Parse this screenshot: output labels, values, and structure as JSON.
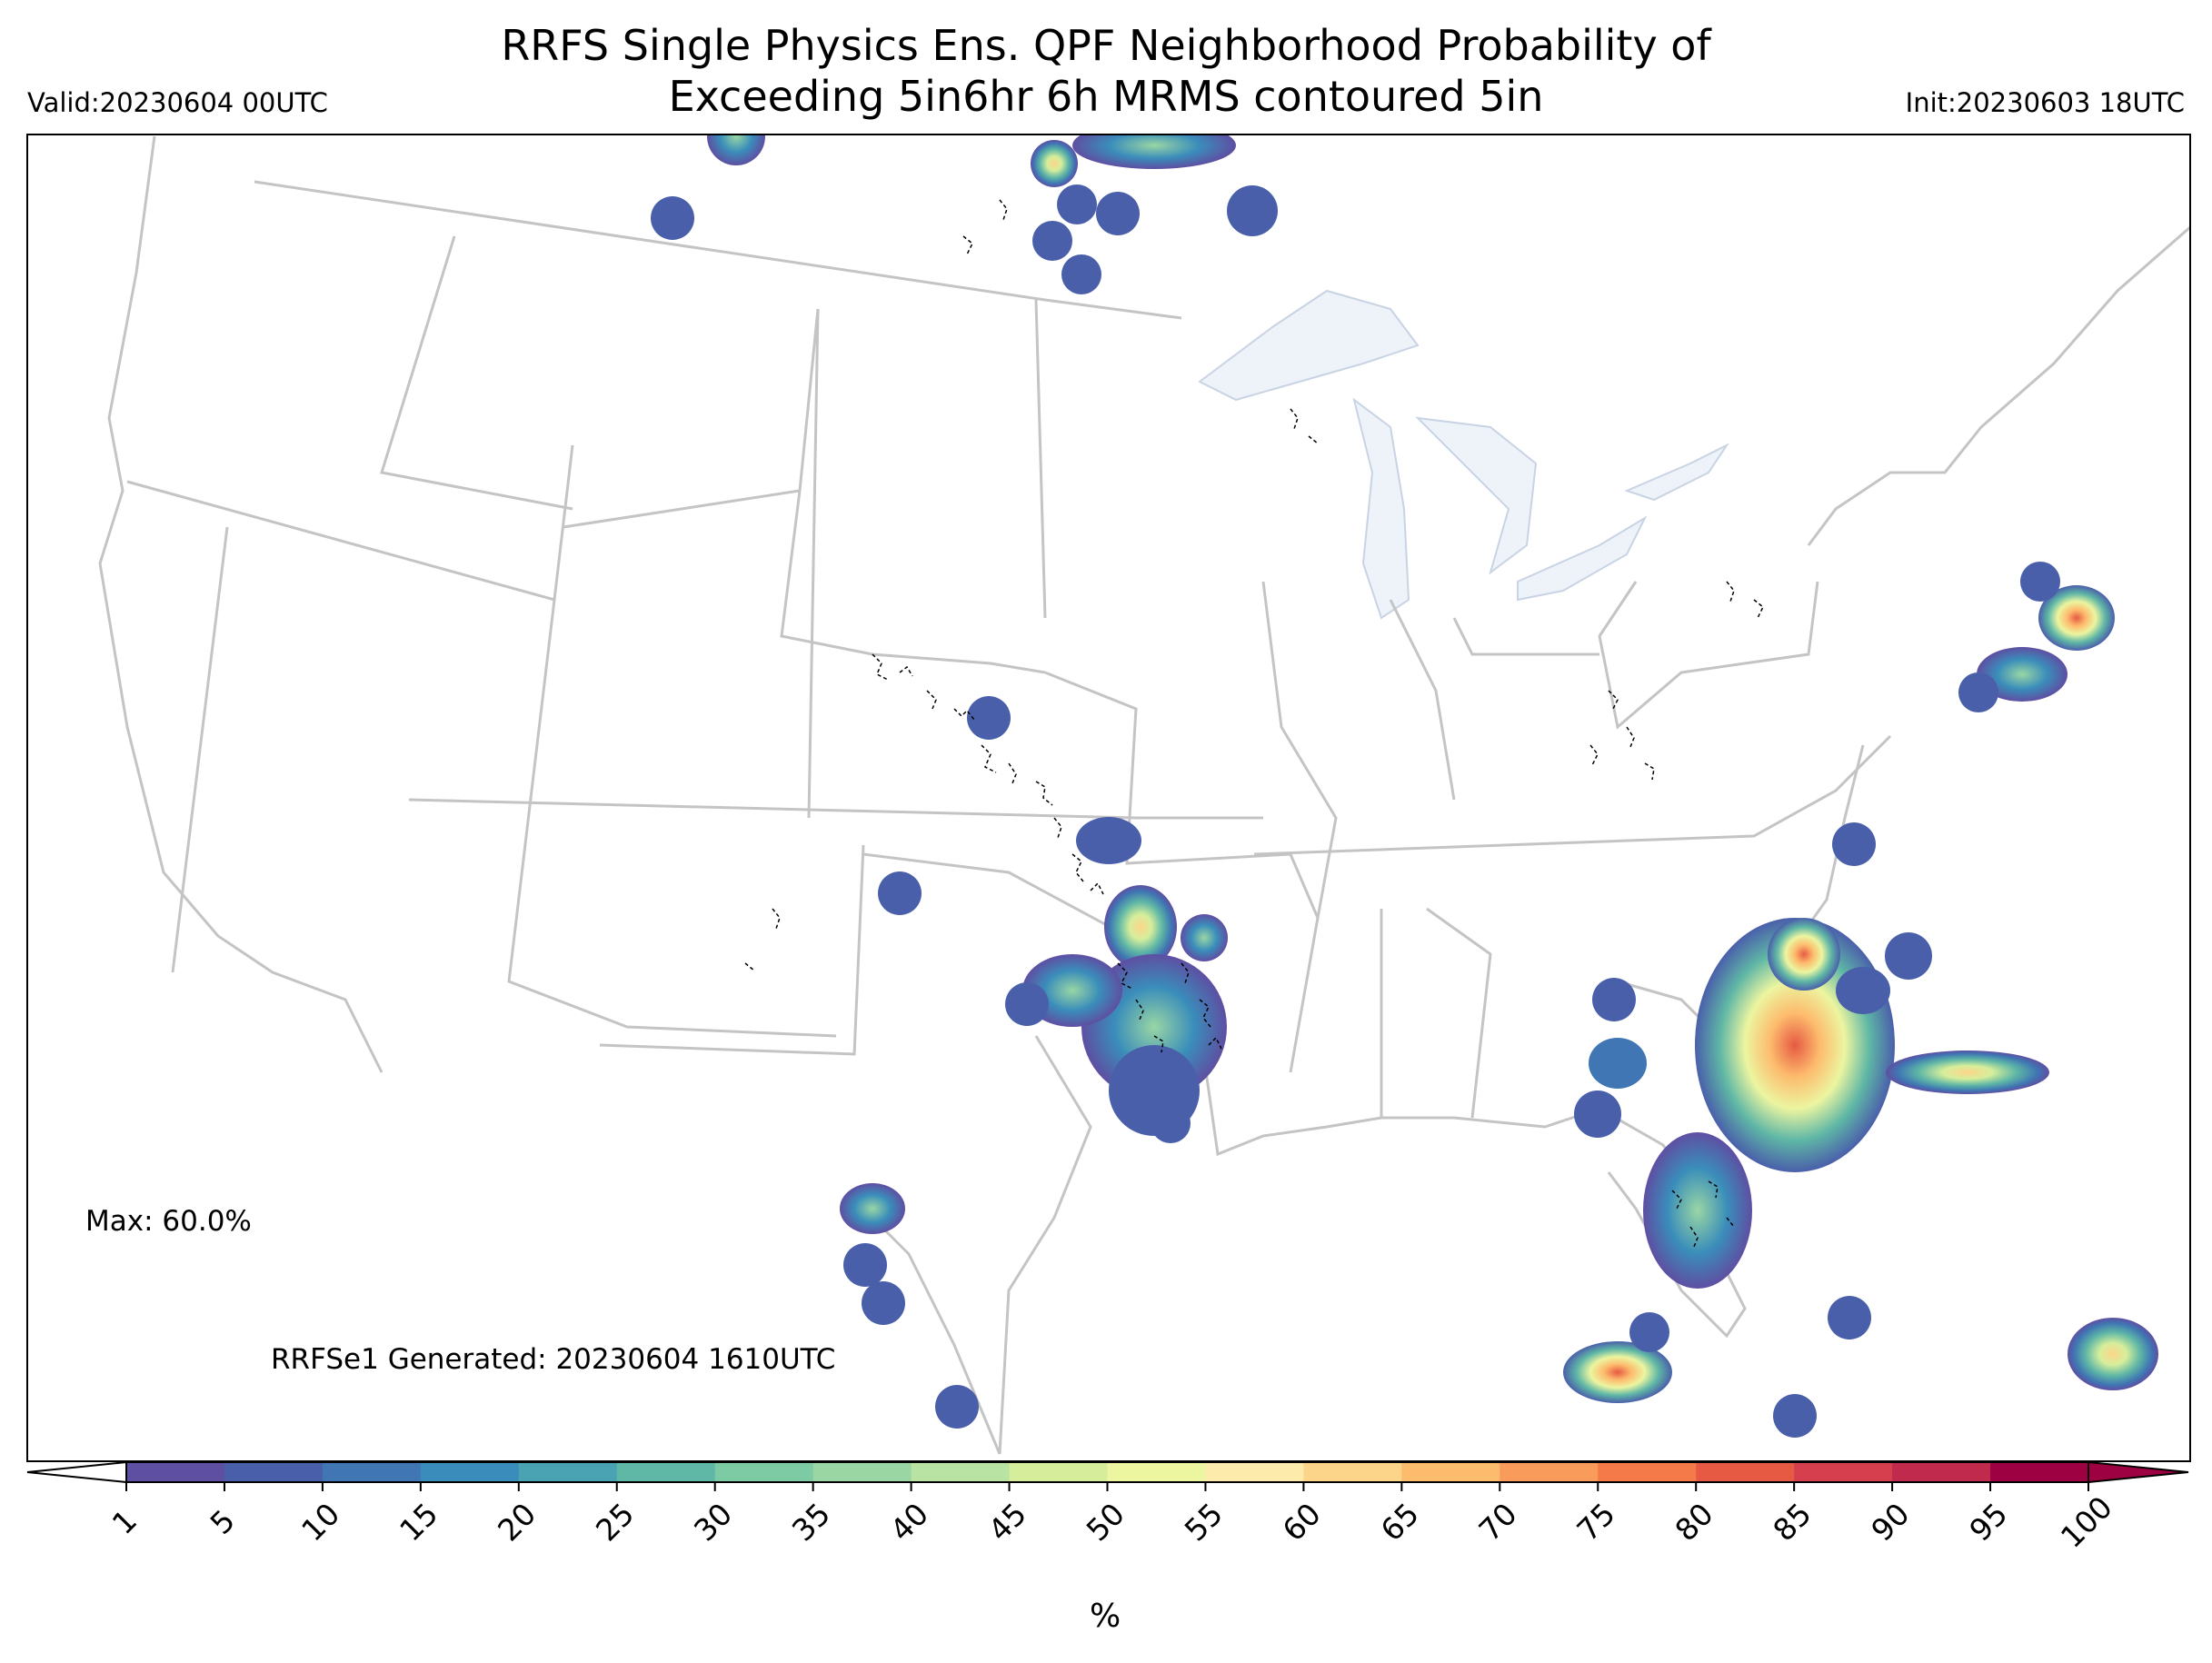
{
  "title_line1": "RRFS Single Physics Ens. QPF Neighborhood Probability of",
  "title_line2": "Exceeding 5in6hr 6h MRMS contoured 5in",
  "valid_label": "Valid:20230604 00UTC",
  "init_label": "Init:20230603 18UTC",
  "max_label": "Max: 60.0%",
  "generated_label": "RRFSe1 Generated: 20230604 1610UTC",
  "colorbar": {
    "unit": "%",
    "ticks": [
      "1",
      "5",
      "10",
      "15",
      "20",
      "25",
      "30",
      "35",
      "40",
      "45",
      "50",
      "55",
      "60",
      "65",
      "70",
      "75",
      "80",
      "85",
      "90",
      "95",
      "100"
    ],
    "colors": [
      "#5e4fa2",
      "#4a5faa",
      "#3f76b3",
      "#3a8dba",
      "#4aa3b2",
      "#5fb7a6",
      "#7ccba5",
      "#99d6a4",
      "#b8e3a2",
      "#d6ee9b",
      "#ecf5a0",
      "#fcebaa",
      "#fdd58a",
      "#fdbb6d",
      "#f99b5a",
      "#f47a4a",
      "#e65a43",
      "#d6404e",
      "#bf2a4d",
      "#9e0142"
    ],
    "under_color": "#ffffff",
    "over_color": "#9e0142"
  },
  "colors": {
    "lakes": "#eef3fa",
    "borders": "#c8c8c8",
    "contour": "#000000"
  }
}
